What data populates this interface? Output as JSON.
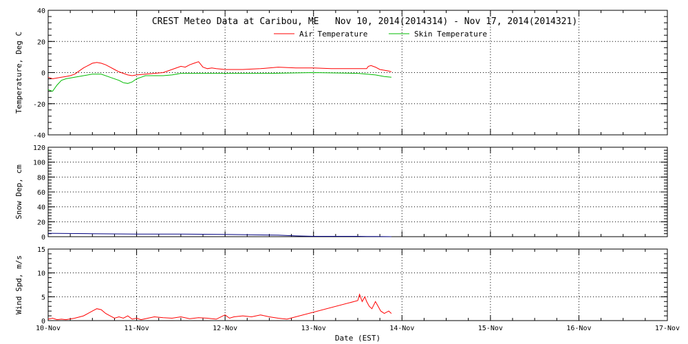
{
  "title": "CREST Meteo Data at Caribou, ME   Nov 10, 2014(2014314) - Nov 17, 2014(2014321)",
  "x_axis": {
    "label": "Date (EST)",
    "range": [
      0,
      7
    ],
    "tick_labels": [
      "10-Nov",
      "11-Nov",
      "12-Nov",
      "13-Nov",
      "14-Nov",
      "15-Nov",
      "16-Nov",
      "17-Nov"
    ]
  },
  "chart_data": [
    {
      "type": "line",
      "ylabel": "Temperature, Deg C",
      "ylim": [
        -40,
        40
      ],
      "yticks": [
        -40,
        -20,
        0,
        20,
        40
      ],
      "grid": true,
      "legend": "top-center",
      "series": [
        {
          "name": "Air Temperature",
          "color": "#ff0000",
          "x": [
            0,
            0.05,
            0.1,
            0.15,
            0.2,
            0.25,
            0.3,
            0.35,
            0.4,
            0.45,
            0.5,
            0.55,
            0.6,
            0.65,
            0.7,
            0.75,
            0.8,
            0.85,
            0.9,
            0.95,
            1.0,
            1.1,
            1.2,
            1.3,
            1.4,
            1.5,
            1.55,
            1.6,
            1.65,
            1.7,
            1.75,
            1.8,
            1.85,
            1.9,
            2.0,
            2.2,
            2.4,
            2.6,
            2.8,
            3.0,
            3.2,
            3.4,
            3.6,
            3.62,
            3.65,
            3.7,
            3.75,
            3.8,
            3.85,
            3.88
          ],
          "y": [
            -3,
            -4,
            -3.5,
            -3,
            -2.5,
            -2,
            -1,
            1,
            3,
            4.5,
            6,
            6.5,
            6,
            5,
            3.5,
            2,
            0.5,
            -0.5,
            -1.5,
            -2,
            -1.5,
            -1,
            -0.5,
            0,
            2,
            4,
            3.5,
            5,
            6,
            7,
            3.5,
            2.5,
            3,
            2.5,
            2,
            2,
            2.5,
            3.5,
            3,
            3,
            2.5,
            2.5,
            2.5,
            4,
            4.5,
            3.5,
            2,
            1.5,
            1,
            0.5
          ]
        },
        {
          "name": "Skin Temperature",
          "color": "#00bb00",
          "x": [
            0,
            0.05,
            0.1,
            0.15,
            0.2,
            0.3,
            0.4,
            0.5,
            0.6,
            0.7,
            0.8,
            0.85,
            0.9,
            0.95,
            1.0,
            1.05,
            1.1,
            1.2,
            1.3,
            1.4,
            1.5,
            2.0,
            2.5,
            3.0,
            3.5,
            3.6,
            3.7,
            3.8,
            3.88
          ],
          "y": [
            -11,
            -12,
            -8,
            -5,
            -4,
            -3,
            -2,
            -1,
            -1,
            -3,
            -5,
            -6.5,
            -7,
            -6,
            -4,
            -3,
            -2,
            -2,
            -2,
            -1.5,
            -0.5,
            -0.5,
            -0.5,
            0,
            -0.5,
            -1,
            -1.5,
            -2.5,
            -3
          ]
        }
      ]
    },
    {
      "type": "line",
      "ylabel": "Snow Dep, cm",
      "ylim": [
        0,
        120
      ],
      "yticks": [
        0,
        20,
        40,
        60,
        80,
        100,
        120
      ],
      "grid": true,
      "series": [
        {
          "color": "#000080",
          "x": [
            0,
            0.5,
            1.0,
            1.5,
            2.0,
            2.3,
            2.6,
            2.8,
            3.0,
            3.5,
            3.6,
            3.7,
            3.88
          ],
          "y": [
            4.5,
            4,
            3.5,
            3.5,
            3,
            2.5,
            2,
            1,
            0.5,
            0.5,
            0.3,
            0.2,
            0
          ]
        }
      ]
    },
    {
      "type": "line",
      "ylabel": "Wind Spd, m/s",
      "ylim": [
        0,
        15
      ],
      "yticks": [
        0,
        5,
        10,
        15
      ],
      "grid": true,
      "series": [
        {
          "color": "#ff0000",
          "x": [
            0,
            0.05,
            0.1,
            0.15,
            0.2,
            0.3,
            0.4,
            0.45,
            0.5,
            0.55,
            0.6,
            0.65,
            0.7,
            0.75,
            0.8,
            0.85,
            0.9,
            0.95,
            1.0,
            1.05,
            1.1,
            1.2,
            1.3,
            1.4,
            1.5,
            1.6,
            1.7,
            1.8,
            1.9,
            2.0,
            2.05,
            2.1,
            2.2,
            2.3,
            2.4,
            2.5,
            2.6,
            2.7,
            3.5,
            3.52,
            3.55,
            3.58,
            3.6,
            3.63,
            3.66,
            3.7,
            3.73,
            3.76,
            3.8,
            3.85,
            3.88
          ],
          "y": [
            0.3,
            0.5,
            0.2,
            0.3,
            0.2,
            0.5,
            1,
            1.5,
            2,
            2.5,
            2.3,
            1.5,
            1,
            0.5,
            0.8,
            0.5,
            1,
            0.3,
            0.5,
            0.2,
            0.4,
            0.8,
            0.6,
            0.5,
            0.8,
            0.4,
            0.6,
            0.5,
            0.3,
            1.2,
            0.5,
            0.8,
            1,
            0.8,
            1.2,
            0.8,
            0.5,
            0.3,
            4.2,
            5.5,
            4,
            5,
            4,
            3,
            2.5,
            4,
            3,
            2,
            1.5,
            2,
            1.5
          ]
        }
      ]
    }
  ]
}
